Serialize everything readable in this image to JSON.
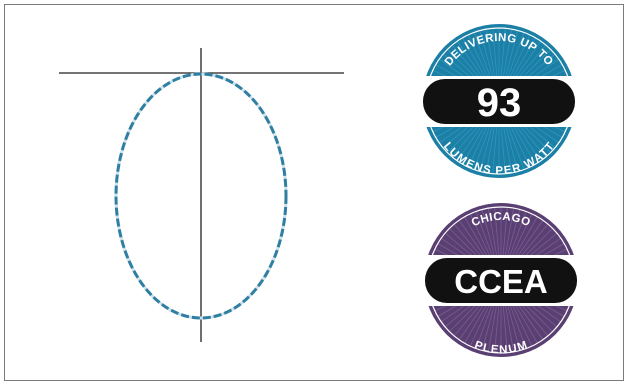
{
  "badges": {
    "efficacy": {
      "top_text": "DELIVERING UP TO",
      "value": "93",
      "bottom_text": "LUMENS PER WATT",
      "ring_color": "#1b7fa6",
      "band_color": "#111111"
    },
    "certification": {
      "top_text": "CHICAGO",
      "value": "CCEA",
      "bottom_text": "PLENUM",
      "ring_color": "#5a3f73",
      "band_color": "#111111"
    }
  },
  "diagram": {
    "symbol": "fixture-outline-dashed-ellipse",
    "outline_color": "#2f7fa3",
    "line_color": "#222222"
  }
}
